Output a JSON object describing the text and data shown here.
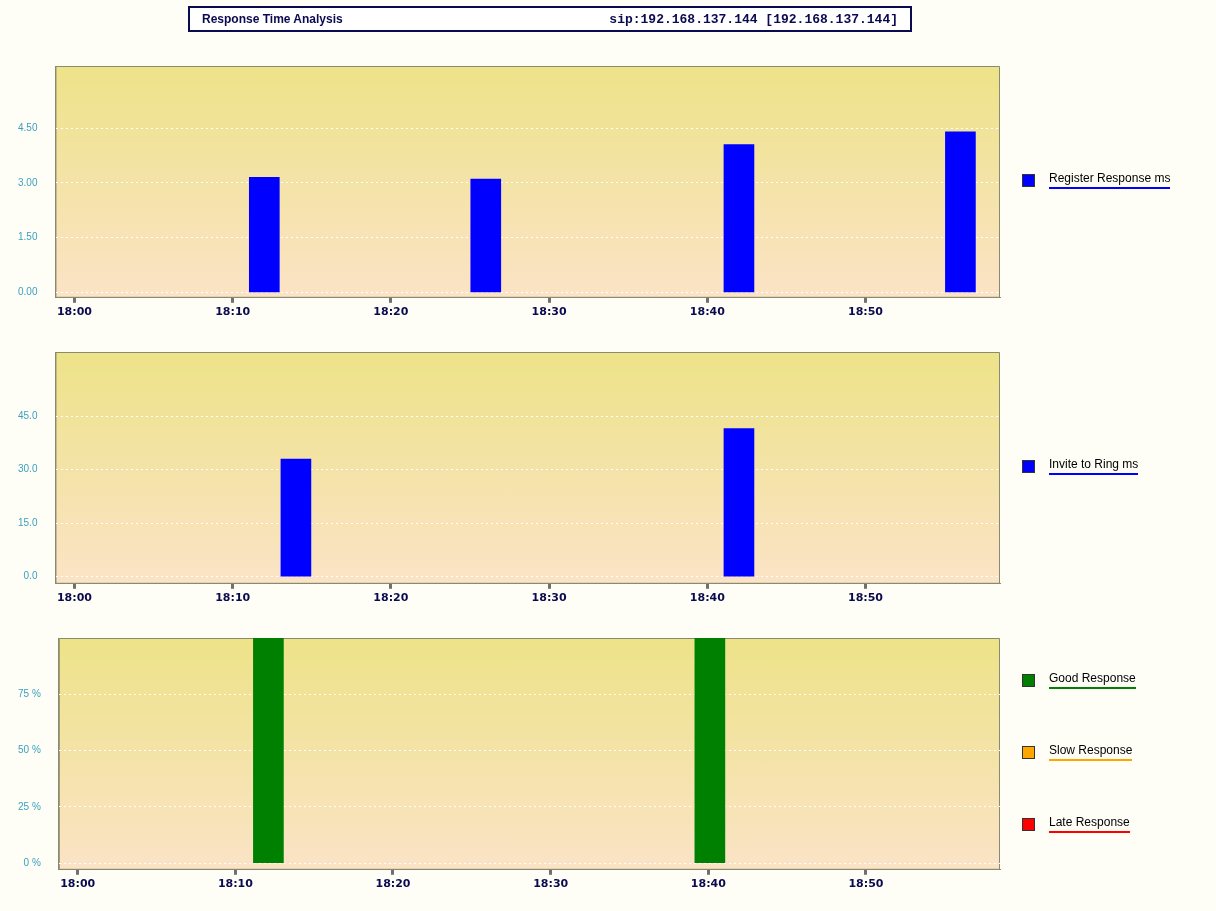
{
  "chart_data": [
    {
      "type": "bar",
      "title": "Response Time Analysis",
      "subtitle": "sip:192.168.137.144 [192.168.137.144]",
      "x": [
        18.2,
        18.4333,
        18.7,
        18.9333
      ],
      "series": [
        {
          "name": "Register Response ms",
          "color": "#0000ff",
          "values": [
            3.15,
            3.1,
            4.05,
            4.4
          ]
        }
      ],
      "xlim": [
        17.98,
        18.975
      ],
      "xticks": [
        {
          "value": 18,
          "label": "18:00"
        },
        {
          "value": 18.1667,
          "label": "18:10"
        },
        {
          "value": 18.3333,
          "label": "18:20"
        },
        {
          "value": 18.5,
          "label": "18:30"
        },
        {
          "value": 18.6667,
          "label": "18:40"
        },
        {
          "value": 18.8333,
          "label": "18:50"
        }
      ],
      "ylim": [
        -0.15,
        6.2
      ],
      "yticks": [
        {
          "value": 0,
          "label": "0.00"
        },
        {
          "value": 1.5,
          "label": "1.50"
        },
        {
          "value": 3,
          "label": "3.00"
        },
        {
          "value": 4.5,
          "label": "4.50"
        }
      ],
      "grid": "y",
      "legend": "right"
    },
    {
      "type": "bar",
      "x": [
        18.2333,
        18.7
      ],
      "series": [
        {
          "name": "Invite to Ring ms",
          "color": "#0000ff",
          "values": [
            33,
            41.5
          ]
        }
      ],
      "xlim": [
        17.98,
        18.975
      ],
      "xticks": [
        {
          "value": 18,
          "label": "18:00"
        },
        {
          "value": 18.1667,
          "label": "18:10"
        },
        {
          "value": 18.3333,
          "label": "18:20"
        },
        {
          "value": 18.5,
          "label": "18:30"
        },
        {
          "value": 18.6667,
          "label": "18:40"
        },
        {
          "value": 18.8333,
          "label": "18:50"
        }
      ],
      "ylim": [
        -2,
        63
      ],
      "yticks": [
        {
          "value": 0,
          "label": "0.0"
        },
        {
          "value": 15,
          "label": "15.0"
        },
        {
          "value": 30,
          "label": "30.0"
        },
        {
          "value": 45,
          "label": "45.0"
        }
      ],
      "grid": "y",
      "legend": "right"
    },
    {
      "type": "bar",
      "x": [
        18.2333,
        18.7
      ],
      "series": [
        {
          "name": "Good Response",
          "color": "#008000",
          "values": [
            100,
            100
          ]
        },
        {
          "name": "Slow Response",
          "color": "#ffa500",
          "values": [
            null,
            null
          ]
        },
        {
          "name": "Late Response",
          "color": "#ff0000",
          "values": [
            null,
            null
          ]
        }
      ],
      "xlim": [
        17.98,
        18.975
      ],
      "xticks": [
        {
          "value": 18,
          "label": "18:00"
        },
        {
          "value": 18.1667,
          "label": "18:10"
        },
        {
          "value": 18.3333,
          "label": "18:20"
        },
        {
          "value": 18.5,
          "label": "18:30"
        },
        {
          "value": 18.6667,
          "label": "18:40"
        },
        {
          "value": 18.8333,
          "label": "18:50"
        }
      ],
      "ylim": [
        -3,
        100
      ],
      "yticks": [
        {
          "value": 0,
          "label": "0 %"
        },
        {
          "value": 25,
          "label": "25 %"
        },
        {
          "value": 50,
          "label": "50 %"
        },
        {
          "value": 75,
          "label": "75 %"
        }
      ],
      "grid": "y",
      "legend": "right"
    }
  ]
}
